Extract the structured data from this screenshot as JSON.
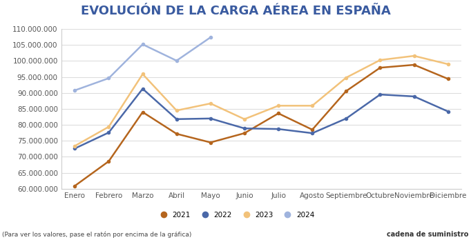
{
  "chart_data": {
    "type": "line",
    "title": "EVOLUCIÓN DE LA CARGA AÉREA EN ESPAÑA",
    "note": "(Para ver los valores, pase el ratón por encima de la gráfica)",
    "source": "cadena de suministro",
    "categories": [
      "Enero",
      "Febrero",
      "Marzo",
      "Abril",
      "Mayo",
      "Junio",
      "Julio",
      "Agosto",
      "Septiembre",
      "Octubre",
      "Noviembre",
      "Diciembre"
    ],
    "series": [
      {
        "name": "2021",
        "color": "#b5651d",
        "marker": "circle",
        "values": [
          60900000,
          68600000,
          84000000,
          77200000,
          74500000,
          77400000,
          83600000,
          78500000,
          90600000,
          97900000,
          98800000,
          94400000
        ]
      },
      {
        "name": "2022",
        "color": "#4a68a8",
        "marker": "circle",
        "values": [
          72600000,
          77600000,
          91300000,
          81800000,
          82000000,
          78900000,
          78700000,
          77400000,
          82000000,
          89500000,
          88900000,
          84200000
        ]
      },
      {
        "name": "2023",
        "color": "#f2c27a",
        "marker": "circle",
        "values": [
          73400000,
          79400000,
          95900000,
          84500000,
          86700000,
          81800000,
          86000000,
          86000000,
          94800000,
          100300000,
          101600000,
          99000000
        ]
      },
      {
        "name": "2024",
        "color": "#9fb3dd",
        "marker": "circle",
        "values": [
          90800000,
          94600000,
          105200000,
          100100000,
          107400000,
          null,
          null,
          null,
          null,
          null,
          null,
          null
        ]
      }
    ],
    "ylim": [
      60000000,
      110000000
    ],
    "yticks": [
      {
        "value": 60000000,
        "label": "60.000.000"
      },
      {
        "value": 65000000,
        "label": "65.000.000"
      },
      {
        "value": 70000000,
        "label": "70.000.000"
      },
      {
        "value": 75000000,
        "label": "75.000.000"
      },
      {
        "value": 80000000,
        "label": "80.000.000"
      },
      {
        "value": 85000000,
        "label": "85.000.000"
      },
      {
        "value": 90000000,
        "label": "90.000.000"
      },
      {
        "value": 95000000,
        "label": "95.000.000"
      },
      {
        "value": 100000000,
        "label": "100.000.000"
      },
      {
        "value": 105000000,
        "label": "105.000.000"
      },
      {
        "value": 110000000,
        "label": "110.000.000"
      }
    ],
    "grid": true,
    "legend": "lower center"
  }
}
